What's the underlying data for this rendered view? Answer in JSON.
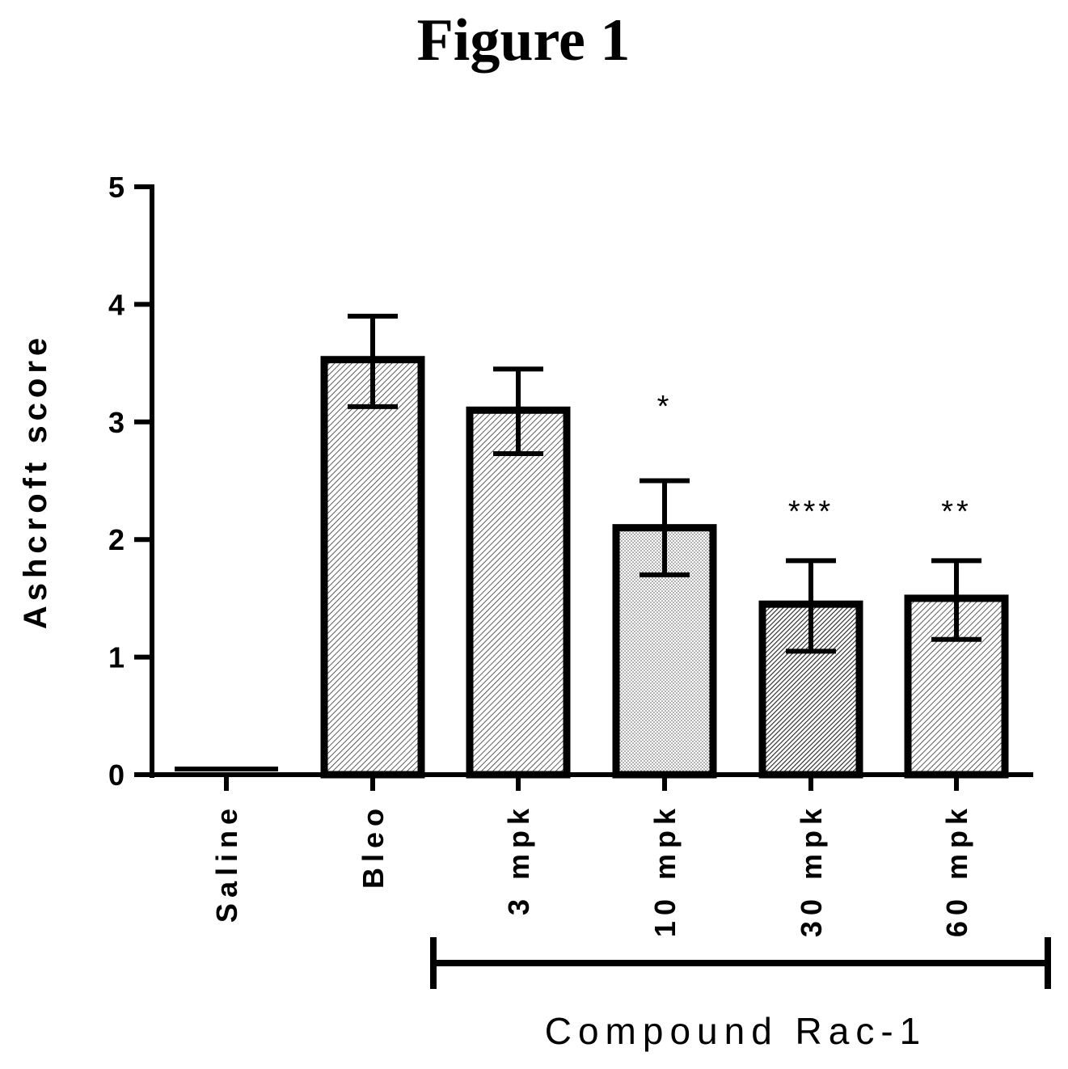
{
  "figure_title": "Figure 1",
  "chart_data": {
    "type": "bar",
    "ylabel": "Ashcroft score",
    "ylim": [
      0,
      5
    ],
    "yticks": [
      "0",
      "1",
      "2",
      "3",
      "4",
      "5"
    ],
    "categories": [
      "Saline",
      "Bleo",
      "3 mpk",
      "10 mpk",
      "30 mpk",
      "60 mpk"
    ],
    "values": [
      0.03,
      3.53,
      3.1,
      2.1,
      1.45,
      1.5
    ],
    "error_upper": [
      0.03,
      3.9,
      3.45,
      2.5,
      1.82,
      1.82
    ],
    "error_lower": [
      0.03,
      3.13,
      2.73,
      1.7,
      1.05,
      1.15
    ],
    "significance": [
      "",
      "",
      "",
      "*",
      "***",
      "**"
    ],
    "fill_patterns": [
      "none",
      "hatch",
      "hatch",
      "dots",
      "hatch-dense",
      "hatch"
    ],
    "group_label": "Compound Rac-1",
    "group_members": [
      "3 mpk",
      "10 mpk",
      "30 mpk",
      "60 mpk"
    ],
    "grid": false,
    "legend": "none"
  }
}
